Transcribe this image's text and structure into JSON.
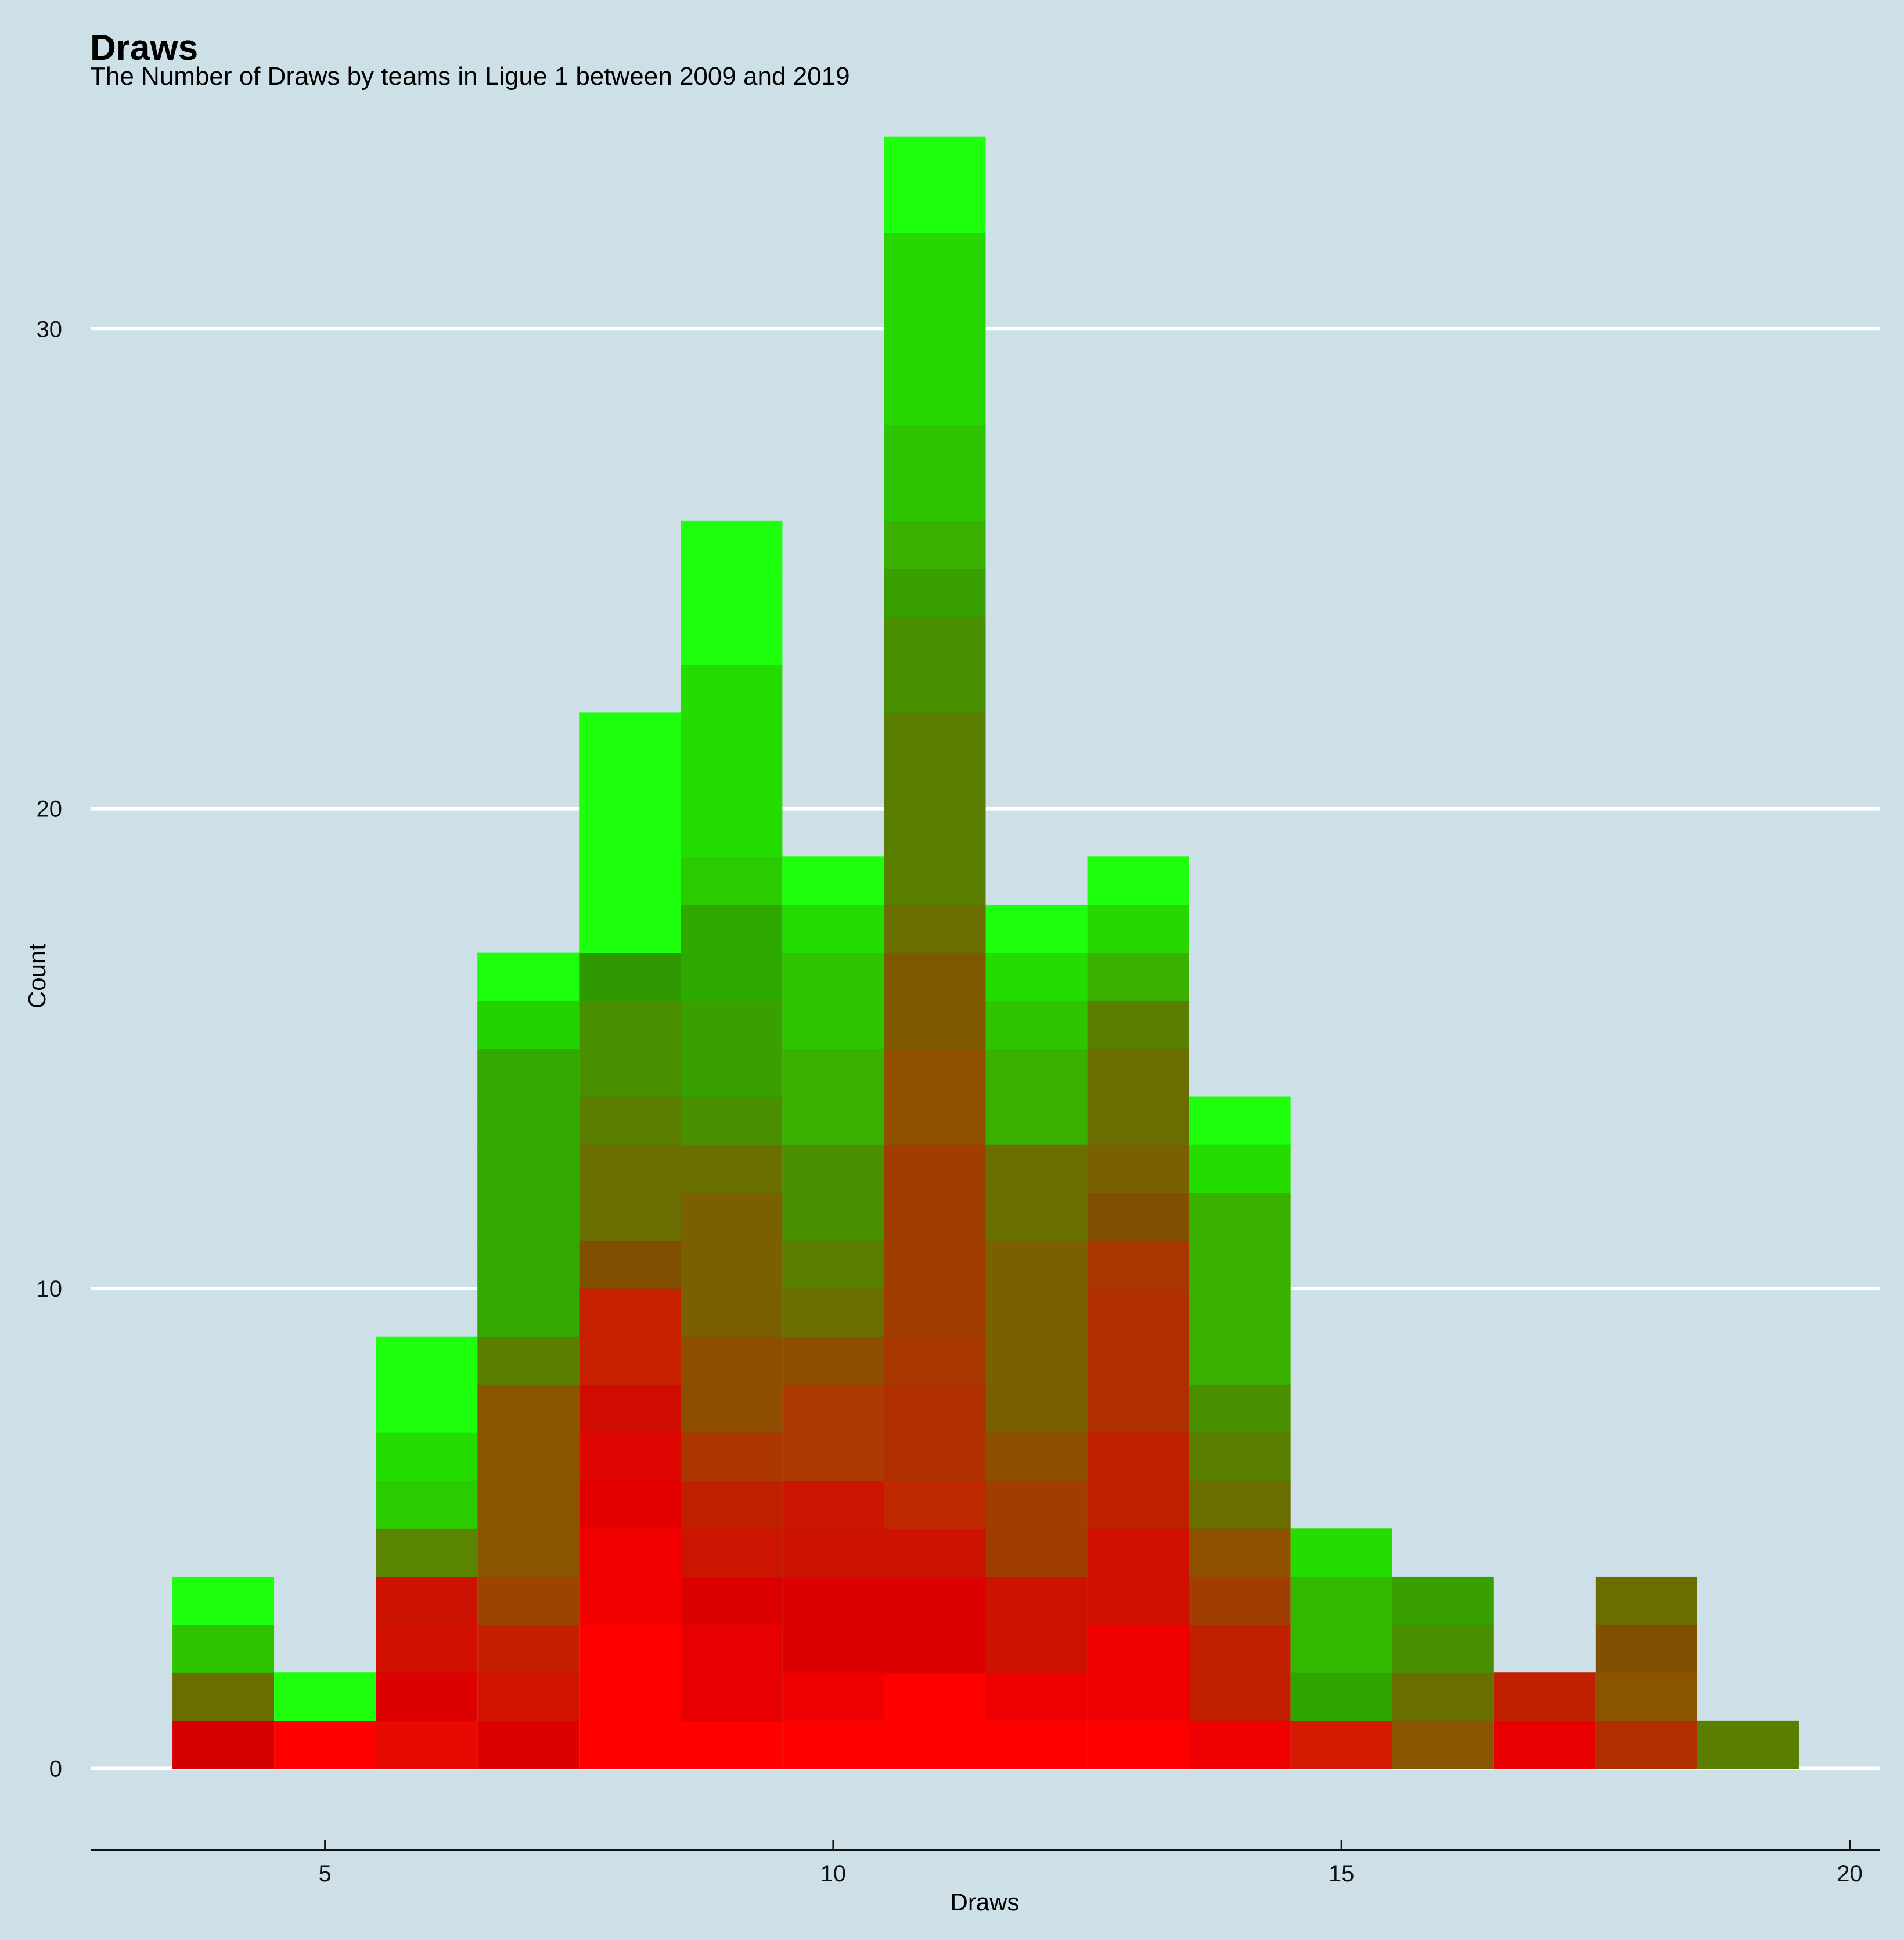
{
  "chart_data": {
    "type": "bar",
    "title": "Draws",
    "subtitle": "The Number of Draws by teams in Ligue 1 between 2009 and 2019",
    "xlabel": "Draws",
    "ylabel": "Count",
    "x": [
      4,
      5,
      6,
      7,
      8,
      9,
      10,
      11,
      12,
      13,
      14,
      15,
      16,
      17,
      18,
      19
    ],
    "values": [
      4,
      2,
      9,
      17,
      22,
      26,
      19,
      34,
      18,
      19,
      14,
      5,
      4,
      2,
      4,
      1
    ],
    "stack_colors": [
      [
        "#d40000",
        "#6a6d00",
        "#2fc400",
        "#1eff0e"
      ],
      [
        "#ff0000",
        "#1eff0e"
      ],
      [
        "#e80a00",
        "#dd0000",
        "#d00f00",
        "#cc1200",
        "#5a8500",
        "#2acb00",
        "#24dc00",
        "#1eff0e",
        "#1eff0e"
      ],
      [
        "#dd0000",
        "#d11400",
        "#c42000",
        "#9a4400",
        "#8a5400",
        "#8a5400",
        "#8a5400",
        "#8a5400",
        "#5a7e00",
        "#33a800",
        "#33a800",
        "#33a800",
        "#33a800",
        "#33a800",
        "#33a800",
        "#22d100",
        "#1eff0e"
      ],
      [
        "#ff0000",
        "#ff0000",
        "#ff0000",
        "#f20000",
        "#f20000",
        "#e40000",
        "#dd0600",
        "#d00c00",
        "#c62000",
        "#c62000",
        "#805000",
        "#6a6d00",
        "#6a6d00",
        "#5a7e00",
        "#4a8f00",
        "#4a8f00",
        "#2e9900",
        "#1eff0e",
        "#1eff0e",
        "#1eff0e",
        "#1eff0e",
        "#1eff0e"
      ],
      [
        "#ff0000",
        "#e80000",
        "#e80000",
        "#dd0000",
        "#cc1500",
        "#c02000",
        "#ac3600",
        "#8e4e00",
        "#8e4e00",
        "#7a6000",
        "#7a6000",
        "#7a6000",
        "#6a7000",
        "#4a8f00",
        "#3a9f00",
        "#3a9f00",
        "#2ea900",
        "#2ea900",
        "#2acb00",
        "#24dc00",
        "#24dc00",
        "#24dc00",
        "#24dc00",
        "#1eff0e",
        "#1eff0e",
        "#1eff0e"
      ],
      [
        "#ff0000",
        "#ee0000",
        "#dd0000",
        "#dd0000",
        "#cc1200",
        "#cc1500",
        "#ac3a00",
        "#ac3a00",
        "#8e4e00",
        "#6a6d00",
        "#5a7e00",
        "#4a8f00",
        "#4a8f00",
        "#3ab000",
        "#3ab000",
        "#2ec400",
        "#2ec400",
        "#24dc00",
        "#1eff0e"
      ],
      [
        "#ff0000",
        "#ff0000",
        "#dd0000",
        "#dd0000",
        "#cc1200",
        "#c02800",
        "#b02f00",
        "#b02f00",
        "#a83700",
        "#a03d00",
        "#a03d00",
        "#a03d00",
        "#a03d00",
        "#905000",
        "#905000",
        "#805800",
        "#805800",
        "#6a6d00",
        "#5a7e00",
        "#5a7e00",
        "#5a7e00",
        "#5a7e00",
        "#4a8f00",
        "#4a8f00",
        "#3a9f00",
        "#3ab000",
        "#2ec400",
        "#2ec400",
        "#28d700",
        "#28d700",
        "#28d700",
        "#28d700",
        "#1eff0e",
        "#1eff0e"
      ],
      [
        "#ff0000",
        "#ee0000",
        "#cc1200",
        "#cc1200",
        "#a03d00",
        "#a03d00",
        "#8e4e00",
        "#7a6000",
        "#7a6000",
        "#7a6000",
        "#7a6000",
        "#6a7000",
        "#6a7000",
        "#3ab000",
        "#3ab000",
        "#2ec400",
        "#24dc00",
        "#1eff0e"
      ],
      [
        "#ff0000",
        "#ee0000",
        "#ee0000",
        "#d00f00",
        "#d00f00",
        "#c02000",
        "#c02000",
        "#b02f00",
        "#b02f00",
        "#b02f00",
        "#a83700",
        "#805000",
        "#7a6000",
        "#6a6d00",
        "#6a6d00",
        "#5a7e00",
        "#3ab000",
        "#28d700",
        "#1eff0e"
      ],
      [
        "#ee0000",
        "#c02000",
        "#c02000",
        "#a03d00",
        "#905000",
        "#6a6d00",
        "#5a7e00",
        "#4a8f00",
        "#3ab000",
        "#3ab000",
        "#3ab000",
        "#3ab000",
        "#24dc00",
        "#1eff0e"
      ],
      [
        "#d41a00",
        "#2fa600",
        "#33b800",
        "#33b800",
        "#24dc00"
      ],
      [
        "#8a5400",
        "#6a6d00",
        "#4a8f00",
        "#3a9f00"
      ],
      [
        "#e80000",
        "#c02000"
      ],
      [
        "#b02f00",
        "#8a5400",
        "#805000",
        "#6a6d00"
      ],
      [
        "#5a7e00"
      ]
    ],
    "xlim": [
      2.7,
      20.3
    ],
    "ylim": [
      -1.7,
      35.4
    ],
    "x_ticks": [
      5,
      10,
      15,
      20
    ],
    "y_ticks": [
      0,
      10,
      20,
      30
    ],
    "grid": "horizontal",
    "background_color": "#cde0e8",
    "gridline_color": "#ffffff",
    "low_color": "#ff0000",
    "high_color": "#1eff0e"
  }
}
